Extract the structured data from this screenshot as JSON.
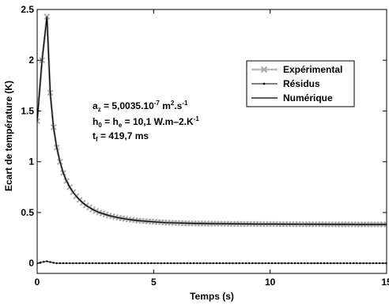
{
  "chart_data": {
    "type": "line",
    "xlabel": "Temps (s)",
    "ylabel": "Ecart de température (K)",
    "xlim": [
      0,
      15
    ],
    "ylim": [
      -0.1,
      2.5
    ],
    "xticks": [
      0,
      5,
      10,
      15
    ],
    "yticks": [
      0,
      0.5,
      1,
      1.5,
      2,
      2.5
    ],
    "xtick_labels": [
      "0",
      "5",
      "10",
      "15"
    ],
    "ytick_labels": [
      "0",
      "0.5",
      "1",
      "1.5",
      "2",
      "2.5"
    ],
    "grid": false,
    "legend_position": "upper-right",
    "series": [
      {
        "name": "Expérimental",
        "style": "gray line with x markers",
        "color": "#bdbdbd",
        "x": [
          0.0,
          0.21,
          0.42,
          0.56,
          0.7,
          0.84,
          0.98,
          1.12,
          1.26,
          1.4,
          1.54,
          1.68,
          1.82,
          1.96,
          2.1,
          2.24,
          2.38,
          2.52,
          2.66,
          2.8,
          2.94,
          3.08,
          3.22,
          3.36,
          3.5,
          3.64,
          3.78,
          3.92,
          4.06,
          4.2,
          4.34,
          4.48,
          4.62,
          4.76,
          4.9,
          5.04,
          5.18,
          5.32,
          5.46,
          5.6,
          5.74,
          5.88,
          6.02,
          6.16,
          6.3,
          6.44,
          6.58,
          6.72,
          6.86,
          7.0,
          7.14,
          7.28,
          7.42,
          7.56,
          7.7,
          7.84,
          7.98,
          8.12,
          8.26,
          8.4,
          8.54,
          8.68,
          8.82,
          8.96,
          9.1,
          9.24,
          9.38,
          9.52,
          9.66,
          9.8,
          9.94,
          10.08,
          10.22,
          10.36,
          10.5,
          10.64,
          10.78,
          10.92,
          11.06,
          11.2,
          11.34,
          11.48,
          11.62,
          11.76,
          11.9,
          12.04,
          12.18,
          12.32,
          12.46,
          12.6,
          12.74,
          12.88,
          13.02,
          13.16,
          13.3,
          13.44,
          13.58,
          13.72,
          13.86,
          14.0,
          14.14,
          14.28,
          14.42,
          14.56,
          14.7,
          14.84,
          15.0
        ],
        "y": [
          1.4,
          2.0,
          2.43,
          1.68,
          1.34,
          1.14,
          1.0,
          0.89,
          0.81,
          0.75,
          0.7,
          0.66,
          0.625,
          0.595,
          0.57,
          0.55,
          0.53,
          0.515,
          0.5,
          0.49,
          0.48,
          0.47,
          0.462,
          0.455,
          0.448,
          0.442,
          0.437,
          0.432,
          0.428,
          0.424,
          0.42,
          0.417,
          0.414,
          0.412,
          0.41,
          0.408,
          0.406,
          0.404,
          0.402,
          0.4,
          0.399,
          0.398,
          0.397,
          0.396,
          0.395,
          0.394,
          0.393,
          0.393,
          0.392,
          0.392,
          0.391,
          0.391,
          0.39,
          0.39,
          0.39,
          0.389,
          0.389,
          0.389,
          0.388,
          0.388,
          0.388,
          0.388,
          0.387,
          0.387,
          0.387,
          0.387,
          0.387,
          0.386,
          0.386,
          0.386,
          0.386,
          0.386,
          0.386,
          0.385,
          0.385,
          0.385,
          0.385,
          0.385,
          0.385,
          0.385,
          0.384,
          0.384,
          0.384,
          0.384,
          0.384,
          0.384,
          0.384,
          0.384,
          0.383,
          0.383,
          0.383,
          0.383,
          0.383,
          0.383,
          0.383,
          0.383,
          0.383,
          0.382,
          0.382,
          0.382,
          0.382,
          0.382,
          0.382,
          0.382,
          0.382,
          0.382,
          0.382
        ]
      },
      {
        "name": "Résidus",
        "style": "black line with dot markers",
        "color": "#000000",
        "x": [
          0.0,
          0.2,
          0.4,
          0.6,
          0.8,
          1.0,
          1.25,
          1.5,
          1.75,
          2.0,
          2.5,
          3.0,
          3.5,
          4.0,
          4.5,
          5.0,
          5.5,
          6.0,
          6.5,
          7.0,
          7.5,
          8.0,
          8.5,
          9.0,
          9.5,
          10.0,
          10.5,
          11.0,
          11.5,
          12.0,
          12.5,
          13.0,
          13.5,
          14.0,
          14.5,
          15.0
        ],
        "y": [
          0.0,
          0.01,
          0.02,
          0.01,
          0.0,
          0.0,
          0.0,
          0.0,
          0.0,
          0.0,
          0.0,
          0.0,
          0.0,
          0.0,
          0.0,
          0.0,
          0.0,
          0.0,
          0.0,
          0.0,
          0.0,
          0.0,
          0.0,
          0.0,
          0.0,
          0.0,
          0.0,
          0.0,
          0.0,
          0.0,
          0.0,
          0.0,
          0.0,
          0.0,
          0.0,
          0.0
        ]
      },
      {
        "name": "Numérique",
        "style": "thin black line",
        "color": "#000000",
        "x": [
          0.0,
          0.21,
          0.42,
          0.56,
          0.7,
          0.84,
          0.98,
          1.12,
          1.26,
          1.4,
          1.54,
          1.68,
          1.82,
          1.96,
          2.1,
          2.24,
          2.38,
          2.52,
          2.66,
          2.8,
          2.94,
          3.08,
          3.22,
          3.36,
          3.5,
          3.64,
          3.78,
          3.92,
          4.06,
          4.2,
          4.5,
          5.0,
          5.5,
          6.0,
          6.5,
          7.0,
          7.5,
          8.0,
          8.5,
          9.0,
          9.5,
          10.0,
          11.0,
          12.0,
          13.0,
          14.0,
          15.0
        ],
        "y": [
          1.4,
          2.0,
          2.43,
          1.68,
          1.34,
          1.14,
          1.0,
          0.89,
          0.81,
          0.75,
          0.7,
          0.66,
          0.625,
          0.595,
          0.57,
          0.55,
          0.53,
          0.515,
          0.5,
          0.49,
          0.48,
          0.47,
          0.462,
          0.455,
          0.448,
          0.442,
          0.437,
          0.432,
          0.428,
          0.424,
          0.417,
          0.408,
          0.4,
          0.397,
          0.394,
          0.392,
          0.39,
          0.389,
          0.388,
          0.387,
          0.386,
          0.386,
          0.385,
          0.384,
          0.383,
          0.382,
          0.382
        ]
      }
    ],
    "annotations": {
      "line1": {
        "a": "a",
        "a_sub": "z",
        "rest": " =  5,0035.10",
        "exp": "-7",
        "unit": " m",
        "unit_sup": "2",
        "unit_tail": ".s",
        "unit_tail_sup": "-1"
      },
      "line2": {
        "h0": "h",
        "h0_sub": "0",
        "eq": " = h",
        "he_sub": "e",
        "rest": " = 10,1 W.m–2.K",
        "rest_sup": "-1"
      },
      "line3": {
        "t": "t",
        "t_sub": "f",
        "rest": " = 419,7 ms"
      }
    }
  }
}
